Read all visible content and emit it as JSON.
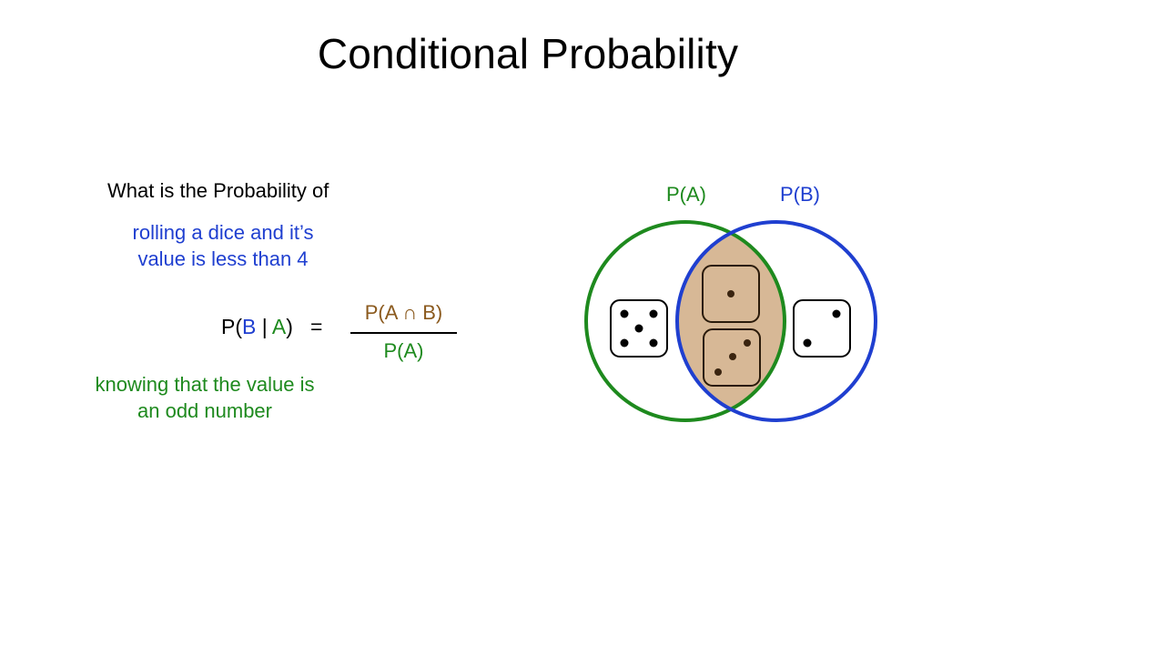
{
  "title": "Conditional Probability",
  "question": {
    "intro": "What is the Probability of",
    "event_b_line1": "rolling a dice and it’s",
    "event_b_line2": "value is less than 4",
    "event_a_line1": "knowing that the value is",
    "event_a_line2": "an odd number"
  },
  "formula": {
    "lhs_p": "P(",
    "lhs_b": "B",
    "lhs_bar": " | ",
    "lhs_a": "A",
    "lhs_close": ")",
    "equals": "=",
    "numerator": "P(A ∩ B)",
    "denominator": "P(A)"
  },
  "venn": {
    "label_a": "P(A)",
    "label_b": "P(B)",
    "dice_a_only": [
      5
    ],
    "dice_intersection": [
      1,
      3
    ],
    "dice_b_only": [
      2
    ]
  },
  "colors": {
    "event_a": "#1e8a1e",
    "event_b": "#1f3fd0",
    "intersection_fill": "#d7b896",
    "intersection_text": "#8b5a1e",
    "pip_intersection": "#3a2410"
  }
}
